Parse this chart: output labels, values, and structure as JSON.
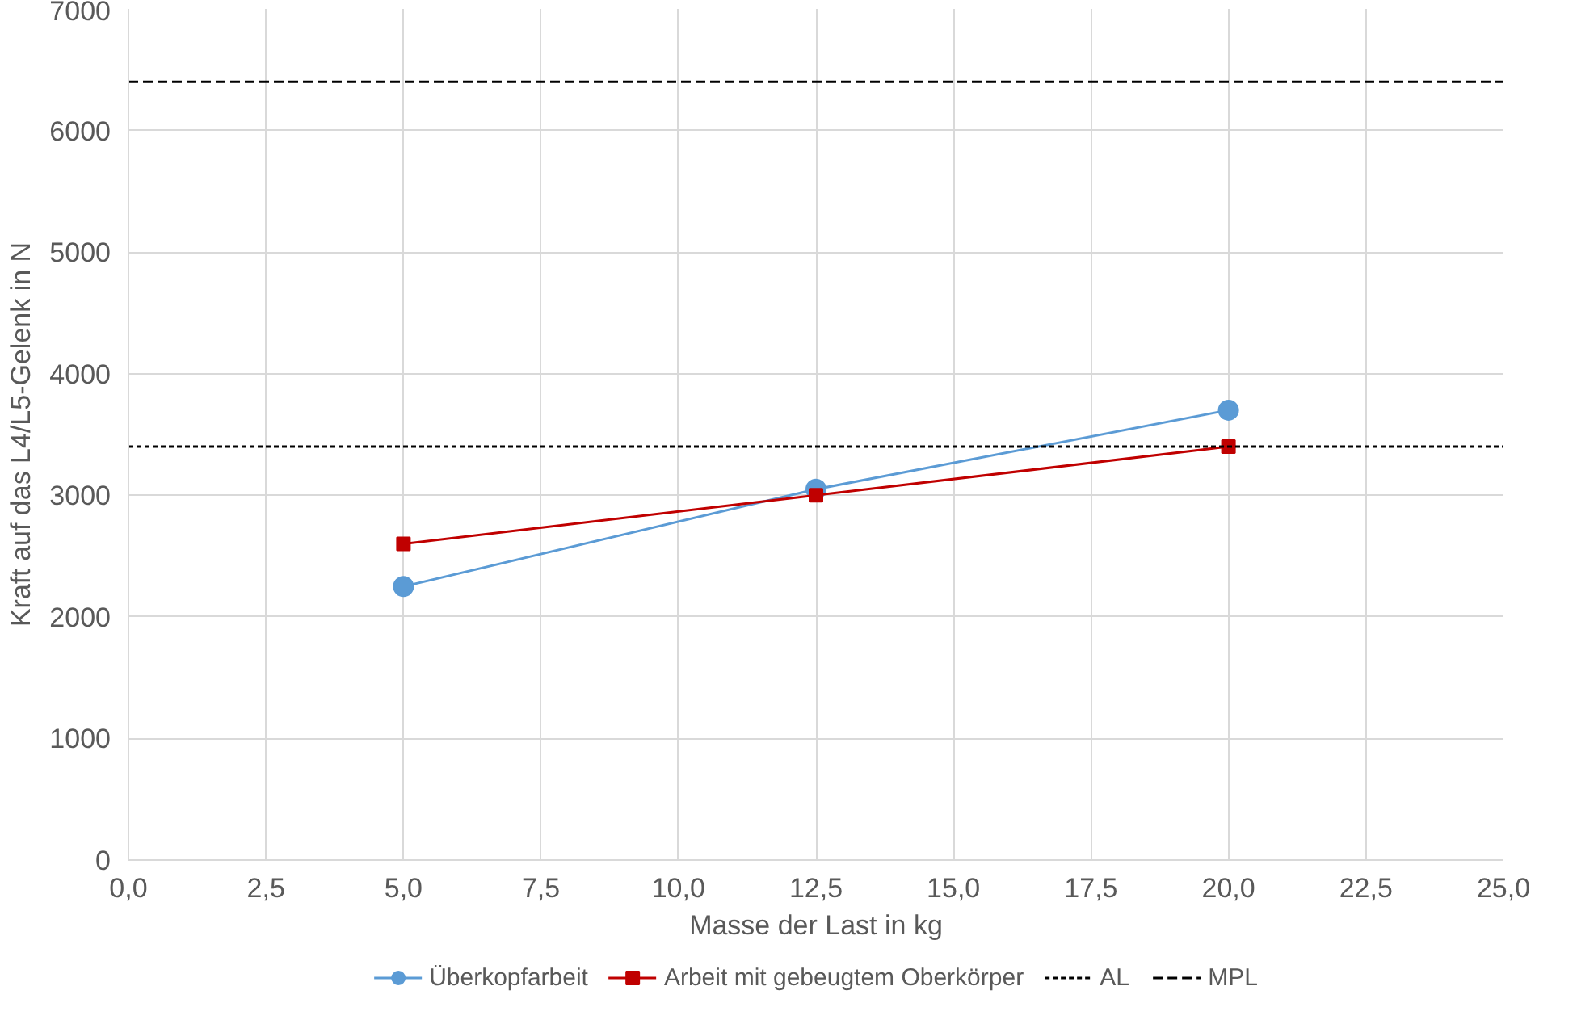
{
  "chart_data": {
    "type": "line",
    "xlabel": "Masse der Last in kg",
    "ylabel": "Kraft auf das L4/L5-Gelenk in N",
    "x": [
      5,
      12.5,
      20
    ],
    "series": [
      {
        "name": "Überkopfarbeit",
        "color": "#5b9bd5",
        "marker": "circle",
        "values": [
          2250,
          3050,
          3700
        ]
      },
      {
        "name": "Arbeit mit gebeugtem Oberkörper",
        "color": "#c00000",
        "marker": "square",
        "values": [
          2600,
          3000,
          3400
        ]
      }
    ],
    "ref_lines": [
      {
        "axis": "y",
        "value": 3400,
        "label": "AL",
        "color": "#000000",
        "line_style": "dotted"
      },
      {
        "axis": "y",
        "value": 6400,
        "label": "MPL",
        "color": "#000000",
        "line_style": "dashed"
      }
    ],
    "xlim": [
      0,
      25
    ],
    "xticks": [
      {
        "value": 0,
        "label": "0,0"
      },
      {
        "value": 2.5,
        "label": "2,5"
      },
      {
        "value": 5,
        "label": "5,0"
      },
      {
        "value": 7.5,
        "label": "7,5"
      },
      {
        "value": 10,
        "label": "10,0"
      },
      {
        "value": 12.5,
        "label": "12,5"
      },
      {
        "value": 15,
        "label": "15,0"
      },
      {
        "value": 17.5,
        "label": "17,5"
      },
      {
        "value": 20,
        "label": "20,0"
      },
      {
        "value": 22.5,
        "label": "22,5"
      },
      {
        "value": 25,
        "label": "25,0"
      }
    ],
    "ylim": [
      0,
      7000
    ],
    "yticks": [
      0,
      1000,
      2000,
      3000,
      4000,
      5000,
      6000,
      7000
    ],
    "grid": true,
    "legend": "bottom"
  }
}
